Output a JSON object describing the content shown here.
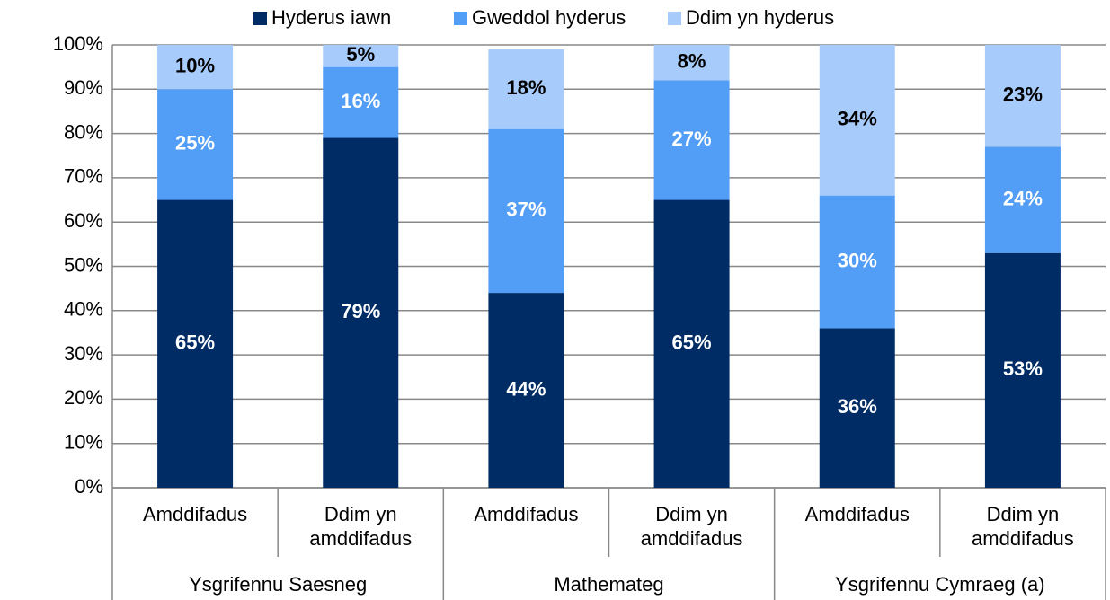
{
  "chart_data": {
    "type": "stacked_bar",
    "categories": [
      "Amddifadus",
      "Ddim yn amddifadus",
      "Amddifadus",
      "Ddim yn amddifadus",
      "Amddifadus",
      "Ddim yn amddifadus"
    ],
    "groups": [
      "Ysgrifennu Saesneg",
      "Mathemateg",
      "Ysgrifennu Cymraeg (a)"
    ],
    "series": [
      {
        "name": "Hyderus iawn",
        "color": "#002c66",
        "label_color": "#ffffff",
        "values": [
          65,
          79,
          44,
          65,
          36,
          53
        ],
        "value_labels": [
          "65%",
          "79%",
          "44%",
          "65%",
          "36%",
          "53%"
        ]
      },
      {
        "name": "Gweddol hyderus",
        "color": "#529df5",
        "label_color": "#ffffff",
        "values": [
          25,
          16,
          37,
          27,
          30,
          24
        ],
        "value_labels": [
          "25%",
          "16%",
          "37%",
          "27%",
          "30%",
          "24%"
        ]
      },
      {
        "name": "Ddim yn hyderus",
        "color": "#a7cbfa",
        "label_color": "#000000",
        "values": [
          10,
          5,
          18,
          8,
          34,
          23
        ],
        "value_labels": [
          "10%",
          "5%",
          "18%",
          "8%",
          "34%",
          "23%"
        ]
      }
    ],
    "ylim": [
      0,
      100
    ],
    "yticks": [
      {
        "value": 0,
        "label": "0%"
      },
      {
        "value": 10,
        "label": "10%"
      },
      {
        "value": 20,
        "label": "20%"
      },
      {
        "value": 30,
        "label": "30%"
      },
      {
        "value": 40,
        "label": "40%"
      },
      {
        "value": 50,
        "label": "50%"
      },
      {
        "value": 60,
        "label": "60%"
      },
      {
        "value": 70,
        "label": "70%"
      },
      {
        "value": 80,
        "label": "80%"
      },
      {
        "value": 90,
        "label": "90%"
      },
      {
        "value": 100,
        "label": "100%"
      }
    ],
    "grid": true,
    "legend": "top"
  }
}
